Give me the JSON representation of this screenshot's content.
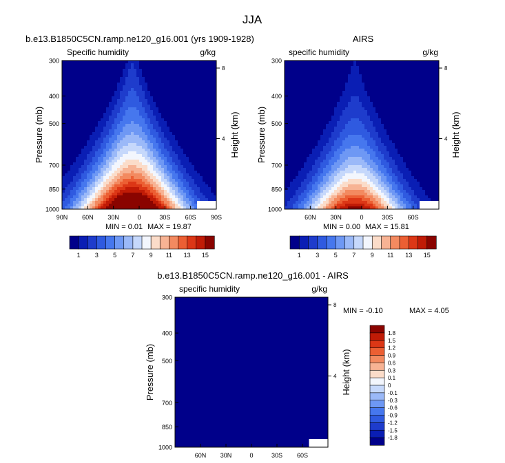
{
  "page_title": "JJA",
  "chart_data": [
    {
      "type": "heatmap",
      "title": "b.e13.B1850C5CN.ramp.ne120_g16.001 (yrs 1909-1928)",
      "field_label": "Specific humidity",
      "units": "g/kg",
      "ylabel": "Pressure (mb)",
      "y2label": "Height (km)",
      "x_ticks": [
        "90N",
        "60N",
        "30N",
        "0",
        "30S",
        "60S",
        "90S"
      ],
      "x_tick_lat": [
        90,
        60,
        30,
        0,
        -30,
        -60,
        -90
      ],
      "xlim": [
        90,
        -90
      ],
      "y_ticks": [
        "300",
        "400",
        "500",
        "700",
        "850",
        "1000"
      ],
      "y_tick_values": [
        300,
        400,
        500,
        700,
        850,
        1000
      ],
      "ylim": [
        1000,
        300
      ],
      "y_scale": "log",
      "height_ticks": [
        "8",
        "4"
      ],
      "height_tick_values": [
        8,
        4
      ],
      "min_label": "MIN =  0.01",
      "max_label": "MAX =  19.87",
      "min": 0.01,
      "max": 19.87,
      "surface_max": 19.8,
      "scale_height": 3.6,
      "half_width_lat": 60,
      "center_lat": 8,
      "colorbar_ticks": [
        "1",
        "3",
        "5",
        "7",
        "9",
        "11",
        "13",
        "15"
      ],
      "colorbar_levels": [
        1,
        2,
        3,
        4,
        5,
        6,
        7,
        8,
        9,
        10,
        11,
        12,
        13,
        14,
        15
      ]
    },
    {
      "type": "heatmap",
      "title": "AIRS",
      "field_label": "specific humidity",
      "units": "g/kg",
      "ylabel": "Pressure (mb)",
      "y2label": "Height (km)",
      "x_ticks": [
        "60N",
        "30N",
        "0",
        "30S",
        "60S"
      ],
      "x_tick_lat": [
        60,
        30,
        0,
        -30,
        -60
      ],
      "xlim": [
        90,
        -90
      ],
      "y_ticks": [
        "300",
        "400",
        "500",
        "700",
        "850",
        "1000"
      ],
      "y_tick_values": [
        300,
        400,
        500,
        700,
        850,
        1000
      ],
      "ylim": [
        1000,
        300
      ],
      "y_scale": "log",
      "height_ticks": [
        "8",
        "4"
      ],
      "height_tick_values": [
        8,
        4
      ],
      "min_label": "MIN =  0.00",
      "max_label": "MAX =  15.81",
      "min": 0.0,
      "max": 15.81,
      "surface_max": 15.8,
      "scale_height": 3.1,
      "half_width_lat": 55,
      "center_lat": 8,
      "colorbar_ticks": [
        "1",
        "3",
        "5",
        "7",
        "9",
        "11",
        "13",
        "15"
      ],
      "colorbar_levels": [
        1,
        2,
        3,
        4,
        5,
        6,
        7,
        8,
        9,
        10,
        11,
        12,
        13,
        14,
        15
      ]
    },
    {
      "type": "heatmap",
      "title": "b.e13.B1850C5CN.ramp.ne120_g16.001 - AIRS",
      "field_label": "specific humidity",
      "units": "g/kg",
      "ylabel": "Pressure (mb)",
      "y2label": "Height (km)",
      "x_ticks": [
        "60N",
        "30N",
        "0",
        "30S",
        "60S"
      ],
      "x_tick_lat": [
        60,
        30,
        0,
        -30,
        -60
      ],
      "xlim": [
        90,
        -90
      ],
      "y_ticks": [
        "300",
        "400",
        "500",
        "700",
        "850",
        "1000"
      ],
      "y_tick_values": [
        300,
        400,
        500,
        700,
        850,
        1000
      ],
      "ylim": [
        1000,
        300
      ],
      "y_scale": "log",
      "height_ticks": [
        "8",
        "4"
      ],
      "height_tick_values": [
        8,
        4
      ],
      "min_label": "MIN = -0.10",
      "max_label": "MAX =  4.05",
      "min": -0.1,
      "max": 4.05,
      "colorbar_labels": [
        "1.8",
        "1.5",
        "1.2",
        "0.9",
        "0.6",
        "0.3",
        "0.1",
        "0",
        "-0.1",
        "-0.3",
        "-0.6",
        "-0.9",
        "-1.2",
        "-1.5",
        "-1.8"
      ],
      "colorbar_levels": [
        -1.8,
        -1.5,
        -1.2,
        -0.9,
        -0.6,
        -0.3,
        -0.1,
        0,
        0.1,
        0.3,
        0.6,
        0.9,
        1.2,
        1.5,
        1.8
      ]
    }
  ],
  "colors": {
    "palette": [
      "#00008a",
      "#0a1eb4",
      "#1e3ccc",
      "#2f5ae0",
      "#4677ee",
      "#6e98f4",
      "#9bb9f8",
      "#c6d8fb",
      "#f3f6fd",
      "#fbdcc9",
      "#f7b394",
      "#f38a60",
      "#ec5f33",
      "#dc3716",
      "#c01b06",
      "#8a0400"
    ],
    "missing": "#ffffff",
    "axis": "#000000"
  }
}
